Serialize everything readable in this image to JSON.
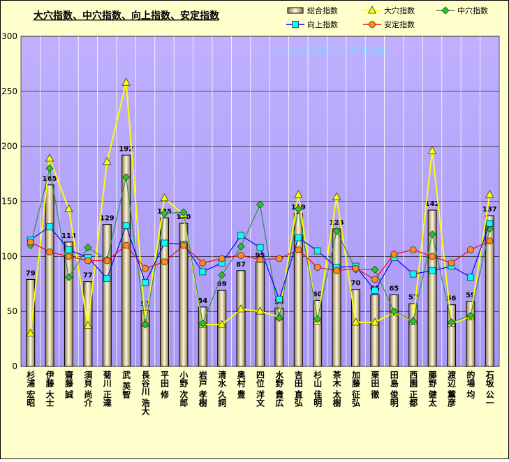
{
  "chart_data": {
    "type": "bar",
    "title": "大穴指数、中穴指数、向上指数、安定指数",
    "watermark": "©Caniの競馬データ研究室",
    "categories": [
      "杉浦 宏昭",
      "伊藤 大士",
      "齋藤 誠",
      "須貝 尚介",
      "菊川 正達",
      "武 英智",
      "長谷川 浩大",
      "平田 修",
      "小野 次郎",
      "岩戸 孝樹",
      "清水 久詞",
      "奥村 豊",
      "四位 洋文",
      "水野 貴広",
      "吉田 直弘",
      "杉山 佳明",
      "茶木 太樹",
      "加藤 征弘",
      "栗田 徹",
      "田島 俊明",
      "西園 正都",
      "藤野 健太",
      "渡辺 薫彦",
      "的場 均",
      "石坂 公一"
    ],
    "series": [
      {
        "name": "総合指数",
        "type": "bar",
        "color": "#e8dcb0",
        "values": [
          79,
          165,
          113,
          77,
          129,
          192,
          51,
          135,
          130,
          54,
          69,
          87,
          95,
          53,
          139,
          60,
          125,
          70,
          65,
          65,
          57,
          142,
          56,
          59,
          137
        ]
      },
      {
        "name": "大穴指数",
        "type": "line",
        "marker": "triangle",
        "color": "#ffff00",
        "marker_color": "#ffff00",
        "values": [
          30,
          189,
          143,
          37,
          186,
          258,
          39,
          153,
          138,
          38,
          38,
          52,
          50,
          45,
          156,
          41,
          154,
          40,
          40,
          49,
          41,
          196,
          39,
          45,
          156
        ]
      },
      {
        "name": "中穴指数",
        "type": "line",
        "marker": "diamond",
        "color": "#2e8b57",
        "marker_color": "#22cc22",
        "values": [
          110,
          180,
          81,
          108,
          97,
          172,
          38,
          139,
          140,
          39,
          83,
          109,
          147,
          44,
          143,
          43,
          123,
          88,
          88,
          50,
          41,
          120,
          40,
          46,
          125
        ]
      },
      {
        "name": "向上指数",
        "type": "line",
        "marker": "square",
        "color": "#0000ff",
        "marker_color": "#00ffff",
        "values": [
          115,
          127,
          106,
          99,
          80,
          128,
          76,
          112,
          111,
          86,
          94,
          119,
          108,
          61,
          117,
          105,
          90,
          91,
          69,
          99,
          84,
          87,
          91,
          81,
          130
        ]
      },
      {
        "name": "安定指数",
        "type": "line",
        "marker": "circle",
        "color": "#ff0000",
        "marker_color": "#ff8c1a",
        "values": [
          113,
          104,
          100,
          96,
          96,
          110,
          89,
          95,
          110,
          94,
          98,
          101,
          97,
          98,
          106,
          90,
          87,
          89,
          79,
          102,
          106,
          100,
          94,
          106,
          114
        ]
      }
    ],
    "ylim": [
      0,
      300
    ],
    "yticks": [
      0,
      50,
      100,
      150,
      200,
      250,
      300
    ],
    "grid": true
  }
}
